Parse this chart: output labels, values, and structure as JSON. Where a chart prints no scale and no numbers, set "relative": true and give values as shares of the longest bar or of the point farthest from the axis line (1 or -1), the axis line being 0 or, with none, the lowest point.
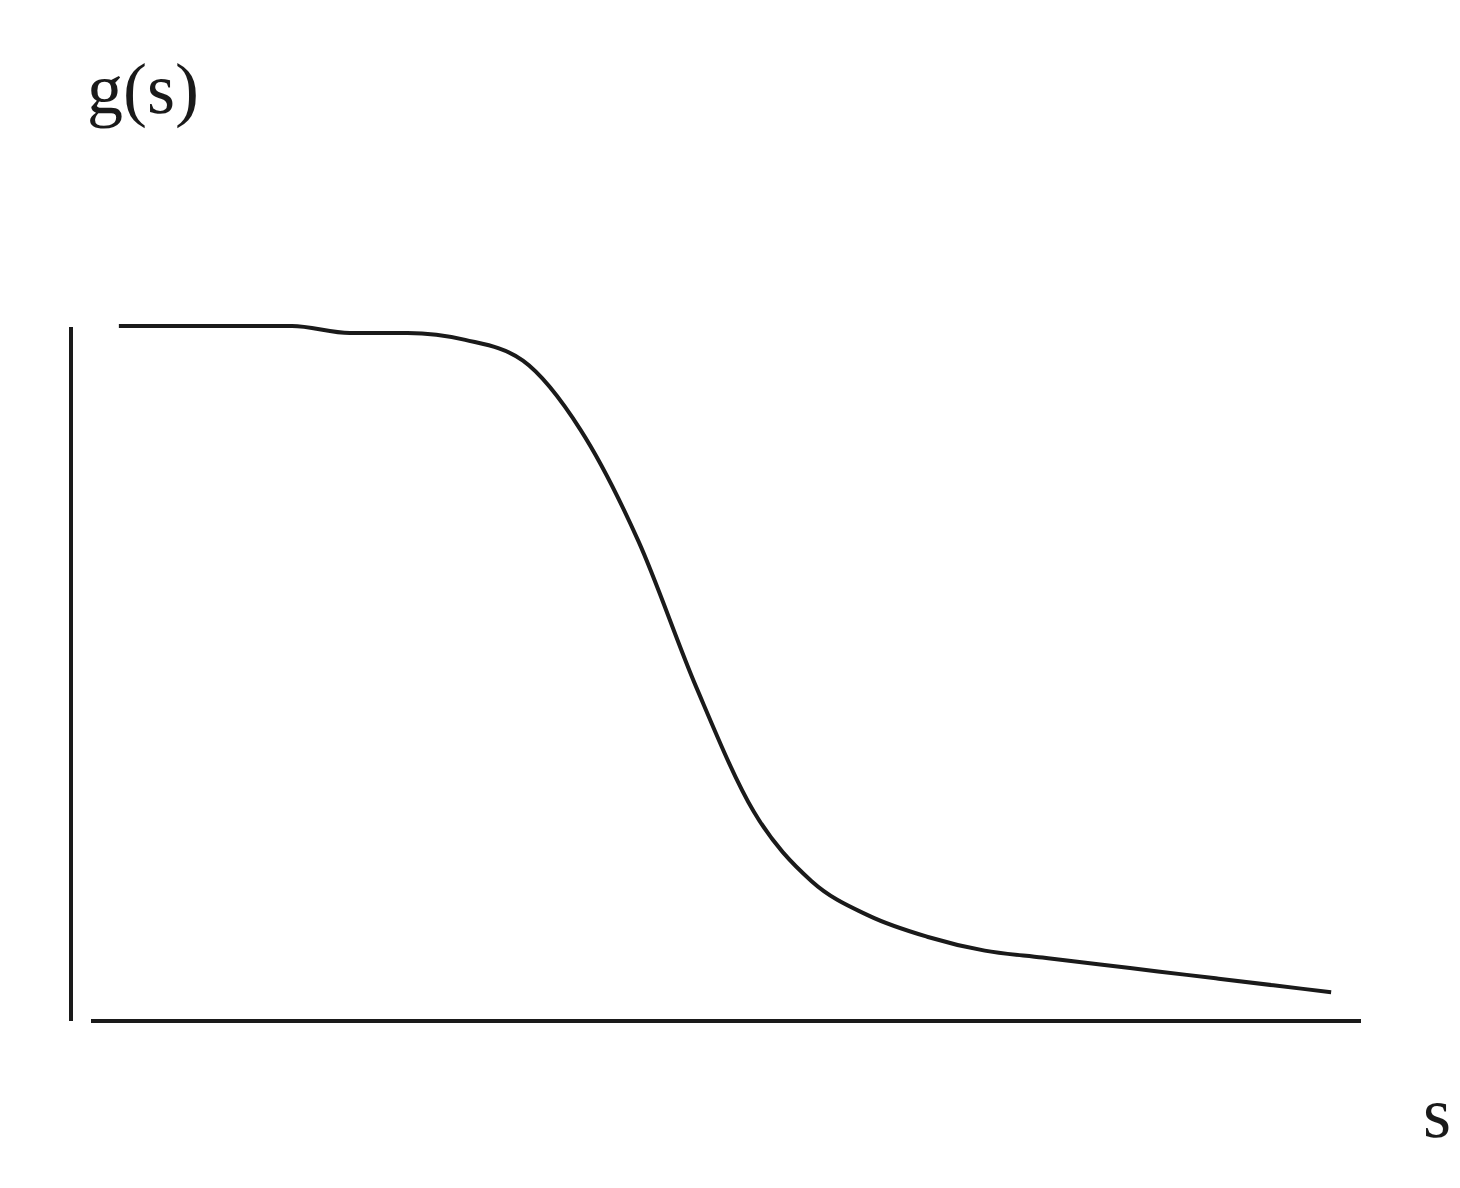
{
  "chart_data": {
    "type": "line",
    "xlabel": "s",
    "ylabel": "g(s)",
    "relative": true,
    "categories": [
      null,
      null,
      null,
      null,
      null,
      null,
      null,
      null,
      null,
      null,
      null,
      null,
      null,
      null,
      null,
      null,
      null,
      null,
      null,
      null,
      null,
      null
    ],
    "series": [
      {
        "color": "#1a1a1a",
        "values": [
          1.0,
          1.0,
          1.0,
          1.0,
          0.99,
          0.99,
          0.98,
          0.95,
          0.85,
          0.69,
          0.48,
          0.3,
          0.2,
          0.15,
          0.12,
          0.1,
          0.09,
          0.08,
          0.07,
          0.06,
          0.05,
          0.04
        ]
      }
    ]
  }
}
